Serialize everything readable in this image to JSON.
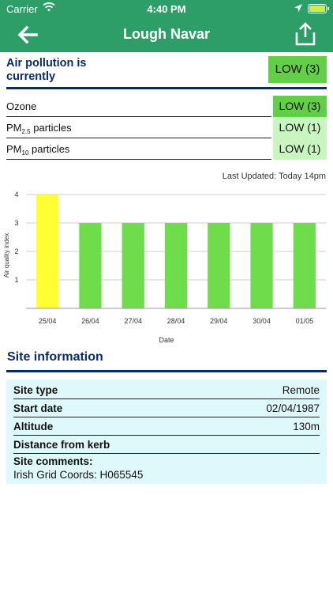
{
  "status_bar": {
    "carrier": "Carrier",
    "time": "4:40 PM",
    "icons": [
      "wifi-icon",
      "location-arrow-icon",
      "battery-charging-icon"
    ]
  },
  "nav": {
    "title": "Lough Navar",
    "back_icon": "arrow-left-icon",
    "share_icon": "share-icon"
  },
  "summary": {
    "label": "Air pollution is currently",
    "value": "LOW (3)",
    "color": "#63cf49"
  },
  "pollutants": [
    {
      "name": "Ozone",
      "sub": "",
      "value": "LOW (3)",
      "color": "#63cf49"
    },
    {
      "name": "PM",
      "sub": "2.5",
      "suffix": " particles",
      "value": "LOW (1)",
      "color": "#c8f5c0"
    },
    {
      "name": "PM",
      "sub": "10",
      "suffix": " particles",
      "value": "LOW (1)",
      "color": "#c8f5c0"
    }
  ],
  "last_updated": "Last Updated: Today 14pm",
  "chart_data": {
    "type": "bar",
    "categories": [
      "25/04",
      "26/04",
      "27/04",
      "28/04",
      "29/04",
      "30/04",
      "01/05"
    ],
    "values": [
      4,
      3,
      3,
      3,
      3,
      3,
      3
    ],
    "bar_colors": [
      "#ffff33",
      "#6fdc4b",
      "#6fdc4b",
      "#6fdc4b",
      "#6fdc4b",
      "#6fdc4b",
      "#6fdc4b"
    ],
    "xlabel": "Date",
    "ylabel": "Air quality index",
    "yticks": [
      1,
      2,
      3,
      4
    ],
    "ylim": [
      0,
      4
    ],
    "grid": true
  },
  "site_info": {
    "title": "Site information",
    "rows": [
      {
        "key": "Site type",
        "value": "Remote"
      },
      {
        "key": "Start date",
        "value": "02/04/1987"
      },
      {
        "key": "Altitude",
        "value": "130m"
      },
      {
        "key": "Distance from kerb",
        "value": ""
      }
    ],
    "comments_label": "Site comments:",
    "comments_value": "Irish Grid Coords: H065545"
  },
  "theme": {
    "brand_green": "#2e9e68",
    "navy": "#0c2b63",
    "info_bg": "#dff8fb"
  }
}
